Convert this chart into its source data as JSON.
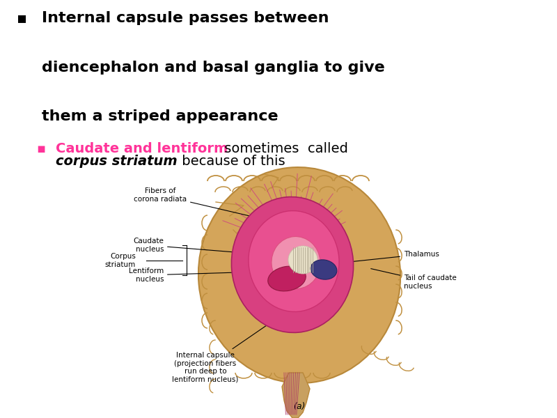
{
  "background_color": "#ffffff",
  "bullet1_line1": "Internal capsule passes between",
  "bullet1_line2": "diencephalon and basal ganglia to give",
  "bullet1_line3": "them a striped appearance",
  "bullet2_pink": "Caudate and lentiform",
  "bullet2_black": " sometimes  called",
  "bullet2_bold": "corpus striatum",
  "bullet2_rest": " because of this",
  "color_black": "#000000",
  "color_pink": "#FF3399",
  "color_brain": "#D4A55A",
  "color_brain_dark": "#B8883A",
  "color_brain_fold": "#C09040",
  "color_pink_structure": "#CC2266",
  "color_pink_light": "#DD4488",
  "color_pink_bright": "#EE66AA",
  "color_blue": "#3A3A80",
  "color_white_fiber": "#E8E0C8",
  "color_stem": "#C8A060",
  "color_stem_lines": "#AA3366",
  "main_fs": 16,
  "sub_fs": 14,
  "label_fs": 7.5,
  "fig_width": 8.0,
  "fig_height": 6.0
}
